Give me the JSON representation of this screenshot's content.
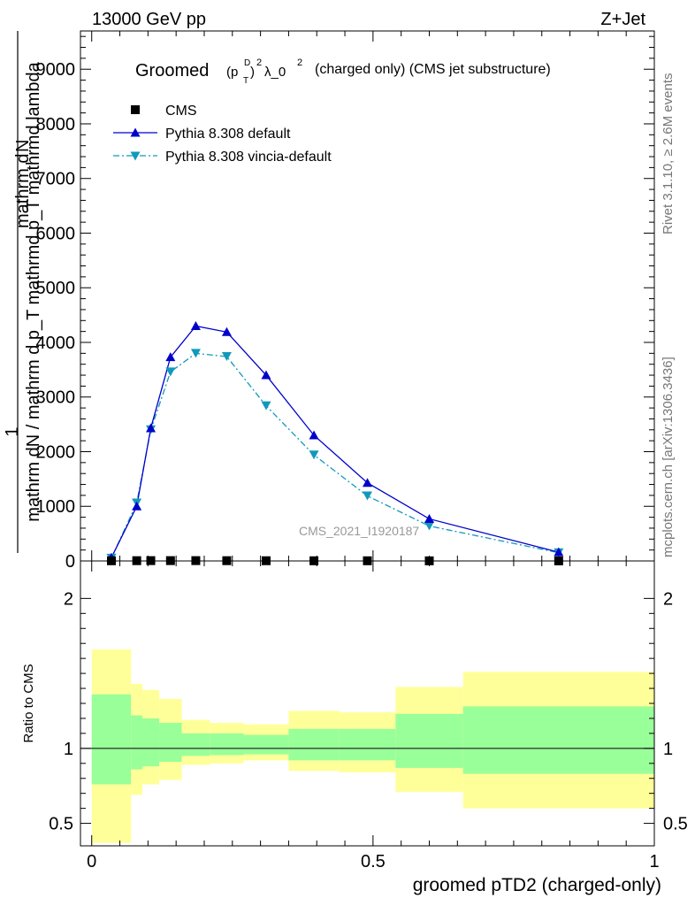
{
  "header": {
    "left_label": "13000 GeV pp",
    "right_label": "Z+Jet"
  },
  "side": {
    "rivet_label": "Rivet 3.1.10, ≥ 2.6M events",
    "mcplots_label": "mcplots.cern.ch [arXiv:1306.3436]"
  },
  "colors": {
    "pythia_default": "#0000cc",
    "pythia_vincia": "#1199bb",
    "band_inner": "#99ff99",
    "band_outer": "#ffff99",
    "cms": "#000000"
  },
  "chart_data": [
    {
      "type": "line",
      "title_main": "Groomed",
      "title_p": "(p",
      "title_D": "D",
      "title_T": "T",
      "title_close": ")",
      "title_sq": "2",
      "title_lambda": "λ_0",
      "title_lambda_sq": "2",
      "title_rest": "(charged only) (CMS jet substructure)",
      "ylabel_frac_one": "1",
      "ylabel_frac_denom": "mathrm dN / mathrm d p_T mathrmd p_T mathrmd lambda",
      "ylabel_num": "mathrm d",
      "ylabel_num_N": "N",
      "ylabel_num_sub": "T",
      "ylabel_num_rest_a": "mathrm d p",
      "ylabel_num_rest_b": "mathrmd lambda",
      "watermark": "CMS_2021_I1920187",
      "ylim": [
        0,
        9700
      ],
      "xlim": [
        -0.02,
        1.0
      ],
      "y_ticks": [
        0,
        1000,
        2000,
        3000,
        4000,
        5000,
        6000,
        7000,
        8000,
        9000
      ],
      "y_tick_labels": [
        "0",
        "1000",
        "2000",
        "3000",
        "4000",
        "5000",
        "6000",
        "7000",
        "8000",
        "9000"
      ],
      "legend_position": "top-left",
      "series": [
        {
          "name": "CMS",
          "style": "square-marker",
          "x": [
            0.035,
            0.08,
            0.105,
            0.14,
            0.185,
            0.24,
            0.31,
            0.395,
            0.49,
            0.6,
            0.83
          ],
          "y": [
            3,
            5,
            6,
            6,
            6,
            5,
            4,
            3,
            3,
            2,
            1
          ]
        },
        {
          "name": "Pythia 8.308 default",
          "style": "solid-triangle-up",
          "x": [
            0.035,
            0.08,
            0.105,
            0.14,
            0.185,
            0.24,
            0.31,
            0.395,
            0.49,
            0.6,
            0.83
          ],
          "y": [
            60,
            1000,
            2430,
            3730,
            4300,
            4190,
            3400,
            2300,
            1430,
            770,
            160
          ]
        },
        {
          "name": "Pythia 8.308 vincia-default",
          "style": "dashdot-triangle-down",
          "x": [
            0.035,
            0.08,
            0.105,
            0.14,
            0.185,
            0.24,
            0.31,
            0.395,
            0.49,
            0.6,
            0.83
          ],
          "y": [
            50,
            1060,
            2400,
            3460,
            3800,
            3740,
            2840,
            1940,
            1190,
            640,
            150
          ]
        }
      ]
    },
    {
      "type": "area",
      "ylabel": "Ratio to CMS",
      "xlabel": "groomed pTD2 (charged-only)",
      "xlim": [
        -0.02,
        1.0
      ],
      "ylim": [
        0.35,
        2.25
      ],
      "x_ticks": [
        0,
        0.5,
        1
      ],
      "x_tick_labels": [
        "0",
        "0.5",
        "1"
      ],
      "y_ticks": [
        0.5,
        1,
        2
      ],
      "y_tick_labels": [
        "0.5",
        "1",
        "2"
      ],
      "reference_line": 1,
      "bin_edges": [
        0,
        0.07,
        0.09,
        0.12,
        0.16,
        0.21,
        0.27,
        0.35,
        0.44,
        0.54,
        0.66,
        1.0
      ],
      "band_inner_low": [
        0.76,
        0.86,
        0.88,
        0.91,
        0.95,
        0.955,
        0.96,
        0.92,
        0.92,
        0.87,
        0.83
      ],
      "band_inner_high": [
        1.36,
        1.22,
        1.2,
        1.17,
        1.1,
        1.1,
        1.09,
        1.13,
        1.13,
        1.23,
        1.28
      ],
      "band_outer_low": [
        0.37,
        0.69,
        0.76,
        0.79,
        0.89,
        0.9,
        0.92,
        0.85,
        0.84,
        0.71,
        0.6
      ],
      "band_outer_high": [
        1.66,
        1.43,
        1.39,
        1.33,
        1.19,
        1.17,
        1.16,
        1.25,
        1.24,
        1.41,
        1.51
      ]
    }
  ]
}
